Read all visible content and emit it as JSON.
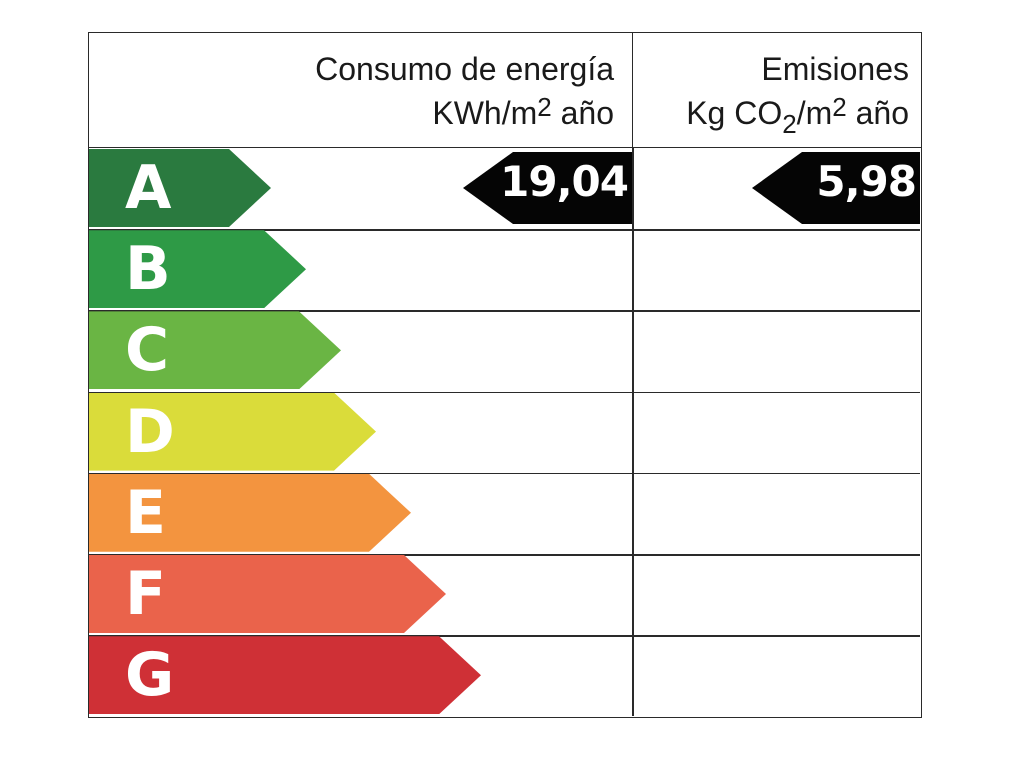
{
  "header": {
    "energy_line1": "Consumo de energía",
    "energy_line2_pre": "KWh/m",
    "energy_line2_sup": "2",
    "energy_line2_post": " año",
    "emissions_line1": "Emisiones",
    "emissions_line2_pre": "Kg CO",
    "emissions_line2_sub": "2",
    "emissions_line2_mid": "/m",
    "emissions_line2_sup": "2",
    "emissions_line2_post": " año"
  },
  "chart_data": {
    "type": "bar",
    "title": "",
    "categories": [
      "A",
      "B",
      "C",
      "D",
      "E",
      "F",
      "G"
    ],
    "colors": [
      "#2a7a3f",
      "#2e9a46",
      "#6ab544",
      "#dadc3a",
      "#f3943f",
      "#ea634b",
      "#cf3036"
    ],
    "current_rating": "A",
    "energy_value": "19,04",
    "emissions_value": "5,98"
  }
}
